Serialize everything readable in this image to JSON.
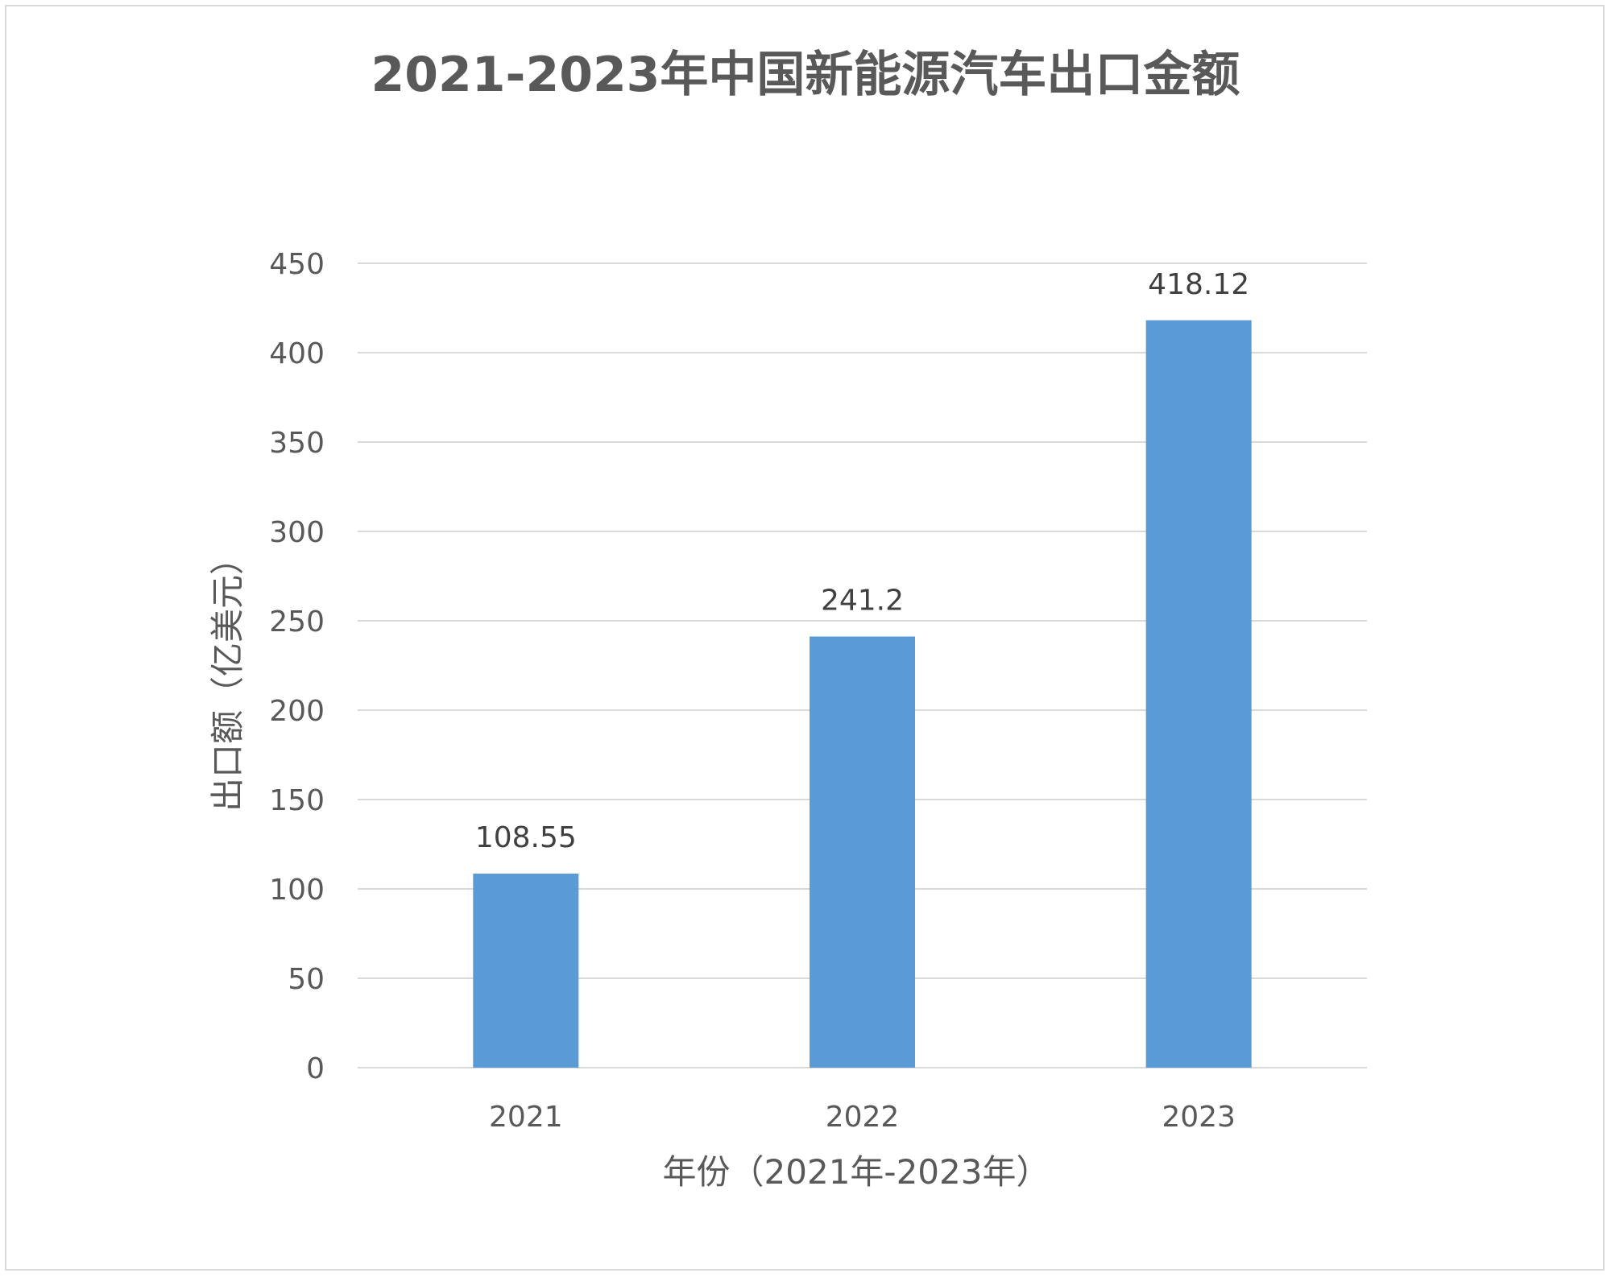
{
  "chart_data": {
    "type": "bar",
    "title": "2021-2023年中国新能源汽车出口金额",
    "xlabel": "年份（2021年-2023年）",
    "ylabel": "出口额（亿美元）",
    "categories": [
      "2021",
      "2022",
      "2023"
    ],
    "values": [
      108.55,
      241.2,
      418.12
    ],
    "value_labels": [
      "108.55",
      "241.2",
      "418.12"
    ],
    "ylim": [
      0,
      450
    ],
    "yticks": [
      0,
      50,
      100,
      150,
      200,
      250,
      300,
      350,
      400,
      450
    ],
    "ytick_labels": [
      "0",
      "50",
      "100",
      "150",
      "200",
      "250",
      "300",
      "350",
      "400",
      "450"
    ],
    "grid": true,
    "legend": "none",
    "bar_color": "#5b9bd5"
  }
}
